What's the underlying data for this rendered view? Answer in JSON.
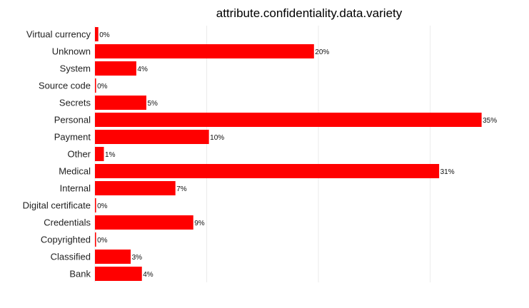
{
  "chart_data": {
    "type": "bar",
    "orientation": "horizontal",
    "title": "attribute.confidentiality.data.variety",
    "xlabel": "",
    "ylabel": "",
    "categories": [
      "Virtual currency",
      "Unknown",
      "System",
      "Source code",
      "Secrets",
      "Personal",
      "Payment",
      "Other",
      "Medical",
      "Internal",
      "Digital certificate",
      "Credentials",
      "Copyrighted",
      "Classified",
      "Bank"
    ],
    "values": [
      0.3,
      19.6,
      3.7,
      0.1,
      4.6,
      34.6,
      10.2,
      0.8,
      30.8,
      7.2,
      0.1,
      8.8,
      0.1,
      3.2,
      4.2
    ],
    "data_labels": [
      "0%",
      "20%",
      "4%",
      "0%",
      "5%",
      "35%",
      "10%",
      "1%",
      "31%",
      "7%",
      "0%",
      "9%",
      "0%",
      "3%",
      "4%"
    ],
    "xlim": [
      0,
      35.2
    ],
    "bar_color": "#ff0000",
    "grid": true,
    "legend": "none"
  }
}
